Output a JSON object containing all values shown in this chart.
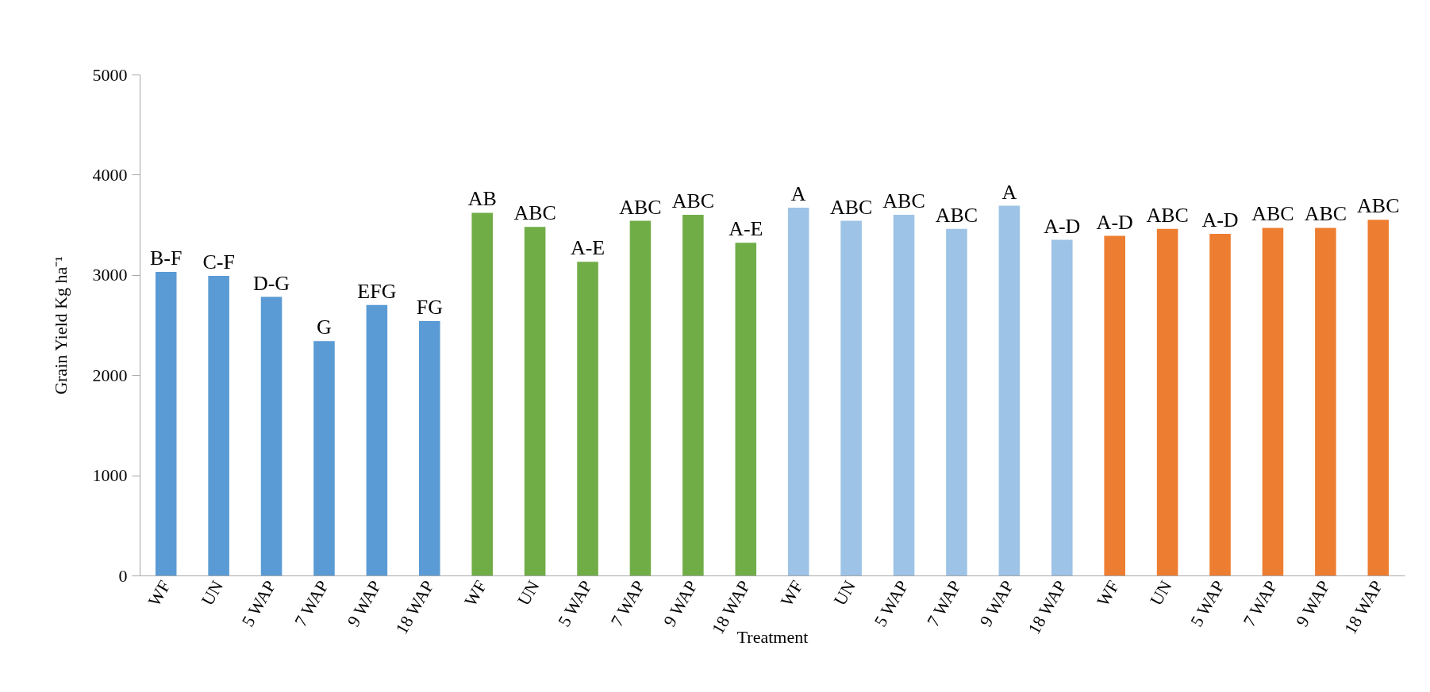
{
  "chart_data": {
    "type": "bar",
    "xlabel": "Treatment",
    "ylabel": "Grain Yield Kg ha⁻¹",
    "categories": [
      "WF",
      "UN",
      "5 WAP",
      "7 WAP",
      "9 WAP",
      "18 WAP",
      "WF",
      "UN",
      "5 WAP",
      "7 WAP",
      "9 WAP",
      "18 WAP",
      "WF",
      "UN",
      "5 WAP",
      "7 WAP",
      "9 WAP",
      "18 WAP",
      "WF",
      "UN",
      "5 WAP",
      "7 WAP",
      "9 WAP",
      "18 WAP"
    ],
    "values": [
      3030,
      2990,
      2780,
      2340,
      2700,
      2540,
      3620,
      3480,
      3130,
      3540,
      3600,
      3320,
      3670,
      3540,
      3600,
      3460,
      3690,
      3350,
      3390,
      3460,
      3410,
      3470,
      3470,
      3550
    ],
    "colors": [
      "#5b9bd5",
      "#5b9bd5",
      "#5b9bd5",
      "#5b9bd5",
      "#5b9bd5",
      "#5b9bd5",
      "#70ad47",
      "#70ad47",
      "#70ad47",
      "#70ad47",
      "#70ad47",
      "#70ad47",
      "#9dc3e6",
      "#9dc3e6",
      "#9dc3e6",
      "#9dc3e6",
      "#9dc3e6",
      "#9dc3e6",
      "#ed7d31",
      "#ed7d31",
      "#ed7d31",
      "#ed7d31",
      "#ed7d31",
      "#ed7d31"
    ],
    "value_labels": [
      "B-F",
      "C-F",
      "D-G",
      "G",
      "EFG",
      "FG",
      "AB",
      "ABC",
      "A-E",
      "ABC",
      "ABC",
      "A-E",
      "A",
      "ABC",
      "ABC",
      "ABC",
      "A",
      "A-D",
      "A-D",
      "ABC",
      "A-D",
      "ABC",
      "ABC",
      "ABC"
    ],
    "ylim": [
      0,
      5000
    ],
    "yticks": [
      0,
      1000,
      2000,
      3000,
      4000,
      5000
    ],
    "grid": false
  }
}
